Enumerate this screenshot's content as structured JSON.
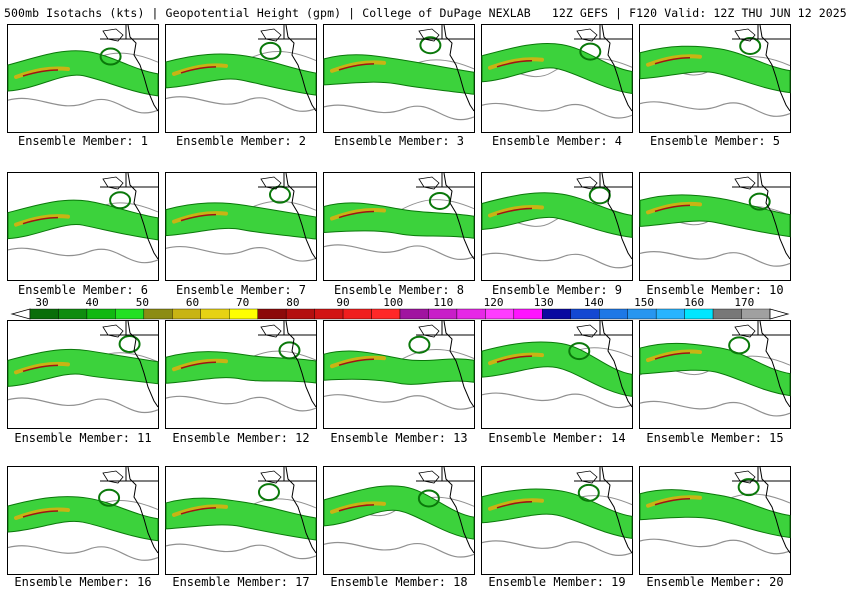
{
  "title": "500mb Isotachs (kts) | Geopotential Height (gpm) | College of DuPage NEXLAB   12Z GEFS | F120 Valid: 12Z THU JUN 12 2025",
  "member_prefix": "Ensemble Member: ",
  "members": [
    {
      "id": 1,
      "label": "Ensemble Member: 1"
    },
    {
      "id": 2,
      "label": "Ensemble Member: 2"
    },
    {
      "id": 3,
      "label": "Ensemble Member: 3"
    },
    {
      "id": 4,
      "label": "Ensemble Member: 4"
    },
    {
      "id": 5,
      "label": "Ensemble Member: 5"
    },
    {
      "id": 6,
      "label": "Ensemble Member: 6"
    },
    {
      "id": 7,
      "label": "Ensemble Member: 7"
    },
    {
      "id": 8,
      "label": "Ensemble Member: 8"
    },
    {
      "id": 9,
      "label": "Ensemble Member: 9"
    },
    {
      "id": 10,
      "label": "Ensemble Member: 10"
    },
    {
      "id": 11,
      "label": "Ensemble Member: 11"
    },
    {
      "id": 12,
      "label": "Ensemble Member: 12"
    },
    {
      "id": 13,
      "label": "Ensemble Member: 13"
    },
    {
      "id": 14,
      "label": "Ensemble Member: 14"
    },
    {
      "id": 15,
      "label": "Ensemble Member: 15"
    },
    {
      "id": 16,
      "label": "Ensemble Member: 16"
    },
    {
      "id": 17,
      "label": "Ensemble Member: 17"
    },
    {
      "id": 18,
      "label": "Ensemble Member: 18"
    },
    {
      "id": 19,
      "label": "Ensemble Member: 19"
    },
    {
      "id": 20,
      "label": "Ensemble Member: 20"
    }
  ],
  "colorbar": {
    "tick_labels": [
      "30",
      "40",
      "50",
      "60",
      "70",
      "80",
      "90",
      "100",
      "110",
      "120",
      "130",
      "140",
      "150",
      "160",
      "170"
    ],
    "colors": [
      "#0a6e0a",
      "#0f8c0f",
      "#11b811",
      "#22e022",
      "#8c8c14",
      "#c8b414",
      "#e6d214",
      "#ffff00",
      "#8c0a0a",
      "#b40f0f",
      "#d21414",
      "#f01e1e",
      "#ff2828",
      "#a014a0",
      "#c81ec8",
      "#e628e6",
      "#ff3cff",
      "#ff14ff",
      "#0a0aa0",
      "#1448d2",
      "#1e78e6",
      "#2896f0",
      "#28b4ff",
      "#00e6ff",
      "#787878",
      "#a0a0a0"
    ]
  },
  "map_colors": {
    "jet_light": "#3cd23c",
    "jet_dark": "#0a780a",
    "jet_core": "#c8b414",
    "jet_max": "#a01414",
    "height_contour": "#909090",
    "coast": "#000000"
  }
}
